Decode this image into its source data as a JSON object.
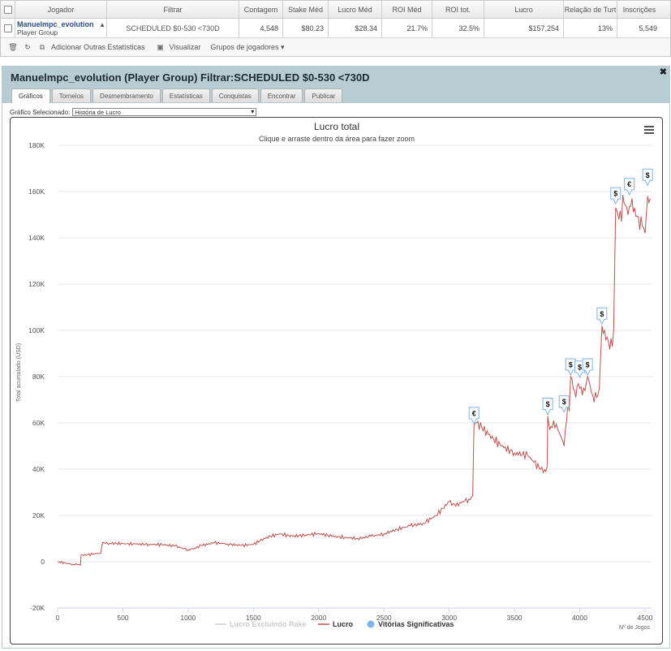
{
  "table": {
    "headers": [
      "Jogador",
      "Filtrar",
      "Contagem",
      "Stake Méd",
      "Lucro Méd",
      "ROI Méd",
      "ROI tot.",
      "Lucro",
      "Relação de Turt",
      "Inscrições"
    ],
    "row": {
      "player": "Manuelmpc_evolution",
      "group": "Player Group",
      "filter": "SCHEDULED $0-530 <730D",
      "count": "4,548",
      "stake": "$80.23",
      "avg_profit": "$28.34",
      "avg_roi": "21.7%",
      "total_roi": "32.5%",
      "profit": "$157,254",
      "ratio": "13%",
      "entries": "5,549"
    }
  },
  "toolbar": {
    "add_stats": "Adicionar Outras Estatísticas",
    "view": "Visualizar",
    "groups": "Grupos de jogadores"
  },
  "panel": {
    "title": "Manuelmpc_evolution (Player Group) Filtrar:SCHEDULED $0-530 <730D",
    "tabs": [
      "Gráficos",
      "Torneios",
      "Desmembramento",
      "Estatísticas",
      "Conquistas",
      "Encontrar",
      "Publicar"
    ],
    "selector_label": "Gráfico Selecionado:",
    "selector_value": "História de Lucro"
  },
  "chart_data": {
    "type": "line",
    "title": "Lucro total",
    "subtitle": "Clique e arraste dentro da área para fazer zoom",
    "ylabel": "Total acumulado (USD)",
    "xlabel": "Nº de Jogos",
    "xlim": [
      0,
      4550
    ],
    "ylim": [
      -20000,
      180000
    ],
    "x_ticks": [
      "0",
      "500",
      "1000",
      "1500",
      "2000",
      "2500",
      "3000",
      "3500",
      "4000",
      "4500"
    ],
    "y_ticks": [
      "-20K",
      "0",
      "20K",
      "40K",
      "60K",
      "80K",
      "100K",
      "120K",
      "140K",
      "160K",
      "180K"
    ],
    "legend": [
      "Lucro Excluindo Rake",
      "Lucro",
      "Vitórias Significativas"
    ],
    "line_color": "#c0504d",
    "series": [
      {
        "name": "Lucro",
        "points": [
          [
            0,
            0
          ],
          [
            60,
            -600
          ],
          [
            120,
            -1200
          ],
          [
            175,
            -1500
          ],
          [
            180,
            2800
          ],
          [
            230,
            3000
          ],
          [
            280,
            3400
          ],
          [
            330,
            3700
          ],
          [
            345,
            8400
          ],
          [
            400,
            8000
          ],
          [
            500,
            7800
          ],
          [
            600,
            7600
          ],
          [
            700,
            7500
          ],
          [
            800,
            7400
          ],
          [
            900,
            6800
          ],
          [
            950,
            6000
          ],
          [
            1000,
            5200
          ],
          [
            1050,
            5800
          ],
          [
            1100,
            7000
          ],
          [
            1200,
            8200
          ],
          [
            1300,
            7700
          ],
          [
            1400,
            7000
          ],
          [
            1500,
            7500
          ],
          [
            1550,
            9000
          ],
          [
            1600,
            10500
          ],
          [
            1700,
            12000
          ],
          [
            1800,
            11000
          ],
          [
            1900,
            11500
          ],
          [
            2000,
            12200
          ],
          [
            2100,
            11000
          ],
          [
            2200,
            10500
          ],
          [
            2300,
            10000
          ],
          [
            2400,
            11000
          ],
          [
            2500,
            12000
          ],
          [
            2600,
            14000
          ],
          [
            2700,
            15500
          ],
          [
            2800,
            16500
          ],
          [
            2900,
            20000
          ],
          [
            3000,
            26000
          ],
          [
            3050,
            24000
          ],
          [
            3100,
            26000
          ],
          [
            3150,
            27000
          ],
          [
            3180,
            28500
          ],
          [
            3190,
            59000
          ],
          [
            3210,
            60000
          ],
          [
            3250,
            58000
          ],
          [
            3300,
            55000
          ],
          [
            3400,
            50000
          ],
          [
            3500,
            47000
          ],
          [
            3600,
            46000
          ],
          [
            3650,
            43000
          ],
          [
            3700,
            40000
          ],
          [
            3740,
            39000
          ],
          [
            3750,
            41000
          ],
          [
            3755,
            63000
          ],
          [
            3770,
            57000
          ],
          [
            3800,
            61000
          ],
          [
            3850,
            55000
          ],
          [
            3880,
            50000
          ],
          [
            3890,
            57000
          ],
          [
            3910,
            69000
          ],
          [
            3920,
            65000
          ],
          [
            3930,
            80000
          ],
          [
            3970,
            71000
          ],
          [
            3990,
            77000
          ],
          [
            4020,
            72000
          ],
          [
            4040,
            74000
          ],
          [
            4060,
            80000
          ],
          [
            4100,
            72000
          ],
          [
            4130,
            71000
          ],
          [
            4150,
            75000
          ],
          [
            4170,
            102000
          ],
          [
            4200,
            96000
          ],
          [
            4250,
            93000
          ],
          [
            4260,
            100000
          ],
          [
            4275,
            153000
          ],
          [
            4300,
            148000
          ],
          [
            4340,
            155000
          ],
          [
            4370,
            150000
          ],
          [
            4400,
            157000
          ],
          [
            4420,
            153000
          ],
          [
            4450,
            149000
          ],
          [
            4480,
            145000
          ],
          [
            4500,
            142000
          ],
          [
            4520,
            158000
          ],
          [
            4540,
            157000
          ]
        ]
      }
    ],
    "significant_wins": [
      {
        "x": 3190,
        "y": 59000,
        "symbol": "€"
      },
      {
        "x": 3755,
        "y": 63000,
        "symbol": "$"
      },
      {
        "x": 3880,
        "y": 64000,
        "symbol": "$"
      },
      {
        "x": 3930,
        "y": 80000,
        "symbol": "$"
      },
      {
        "x": 4000,
        "y": 79000,
        "symbol": "$"
      },
      {
        "x": 4060,
        "y": 80000,
        "symbol": "$"
      },
      {
        "x": 4170,
        "y": 102000,
        "symbol": "$"
      },
      {
        "x": 4275,
        "y": 154000,
        "symbol": "$"
      },
      {
        "x": 4380,
        "y": 158000,
        "symbol": "€"
      },
      {
        "x": 4520,
        "y": 162000,
        "symbol": "$"
      }
    ]
  }
}
